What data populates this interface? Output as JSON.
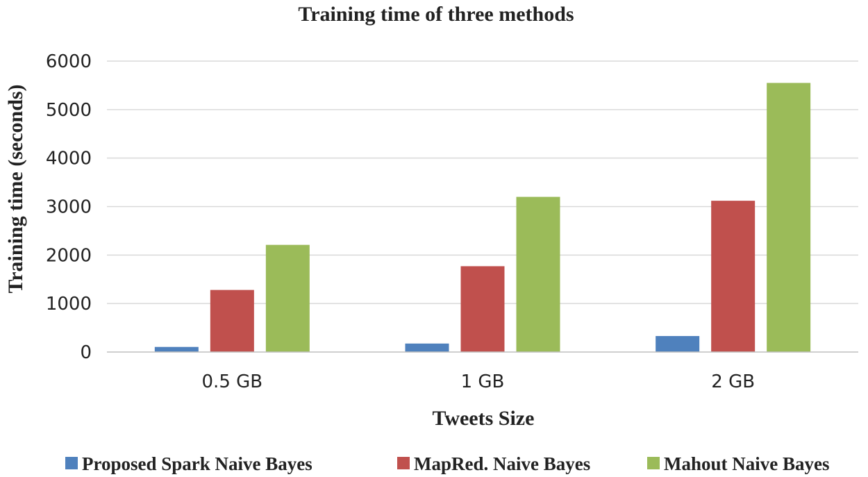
{
  "chart_data": {
    "type": "bar",
    "title": "Training time of three methods",
    "xlabel": "Tweets Size",
    "ylabel": "Training time (seconds)",
    "categories": [
      "0.5 GB",
      "1 GB",
      "2 GB"
    ],
    "ylim": [
      0,
      6000
    ],
    "yticks": [
      0,
      1000,
      2000,
      3000,
      4000,
      5000,
      6000
    ],
    "grid": true,
    "legend_position": "bottom",
    "series": [
      {
        "name": "Proposed Spark Naive Bayes",
        "color": "#4f81bd",
        "values": [
          105,
          175,
          330
        ]
      },
      {
        "name": "MapRed. Naive Bayes",
        "color": "#c0504d",
        "values": [
          1280,
          1770,
          3120
        ]
      },
      {
        "name": "Mahout Naive Bayes",
        "color": "#9bbb59",
        "values": [
          2210,
          3200,
          5550
        ]
      }
    ]
  }
}
